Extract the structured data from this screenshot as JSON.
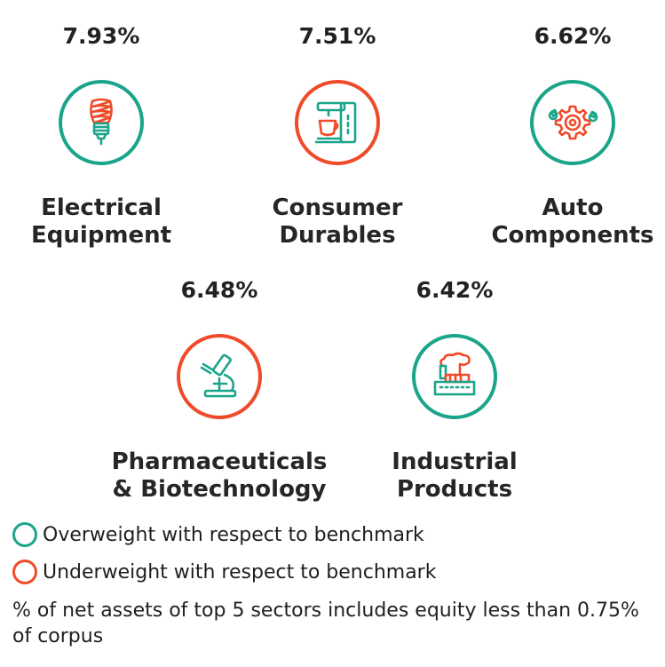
{
  "colors": {
    "overweight": "#1aa58a",
    "underweight": "#ef4b2a"
  },
  "sectors": [
    {
      "percent": "7.93%",
      "line1": "Electrical",
      "line2": "Equipment",
      "weight": "overweight",
      "icon": "light-bulb-icon"
    },
    {
      "percent": "7.51%",
      "line1": "Consumer",
      "line2": "Durables",
      "weight": "underweight",
      "icon": "coffee-machine-icon"
    },
    {
      "percent": "6.62%",
      "line1": "Auto",
      "line2": "Components",
      "weight": "overweight",
      "icon": "gears-icon"
    },
    {
      "percent": "6.48%",
      "line1": "Pharmaceuticals",
      "line2": "& Biotechnology",
      "weight": "underweight",
      "icon": "microscope-icon"
    },
    {
      "percent": "6.42%",
      "line1": "Industrial",
      "line2": "Products",
      "weight": "overweight",
      "icon": "factory-icon"
    }
  ],
  "legend": {
    "overweight": "Overweight with respect to benchmark",
    "underweight": "Underweight with respect to benchmark"
  },
  "footnote": "% of net assets of top 5 sectors includes equity less than 0.75% of corpus"
}
